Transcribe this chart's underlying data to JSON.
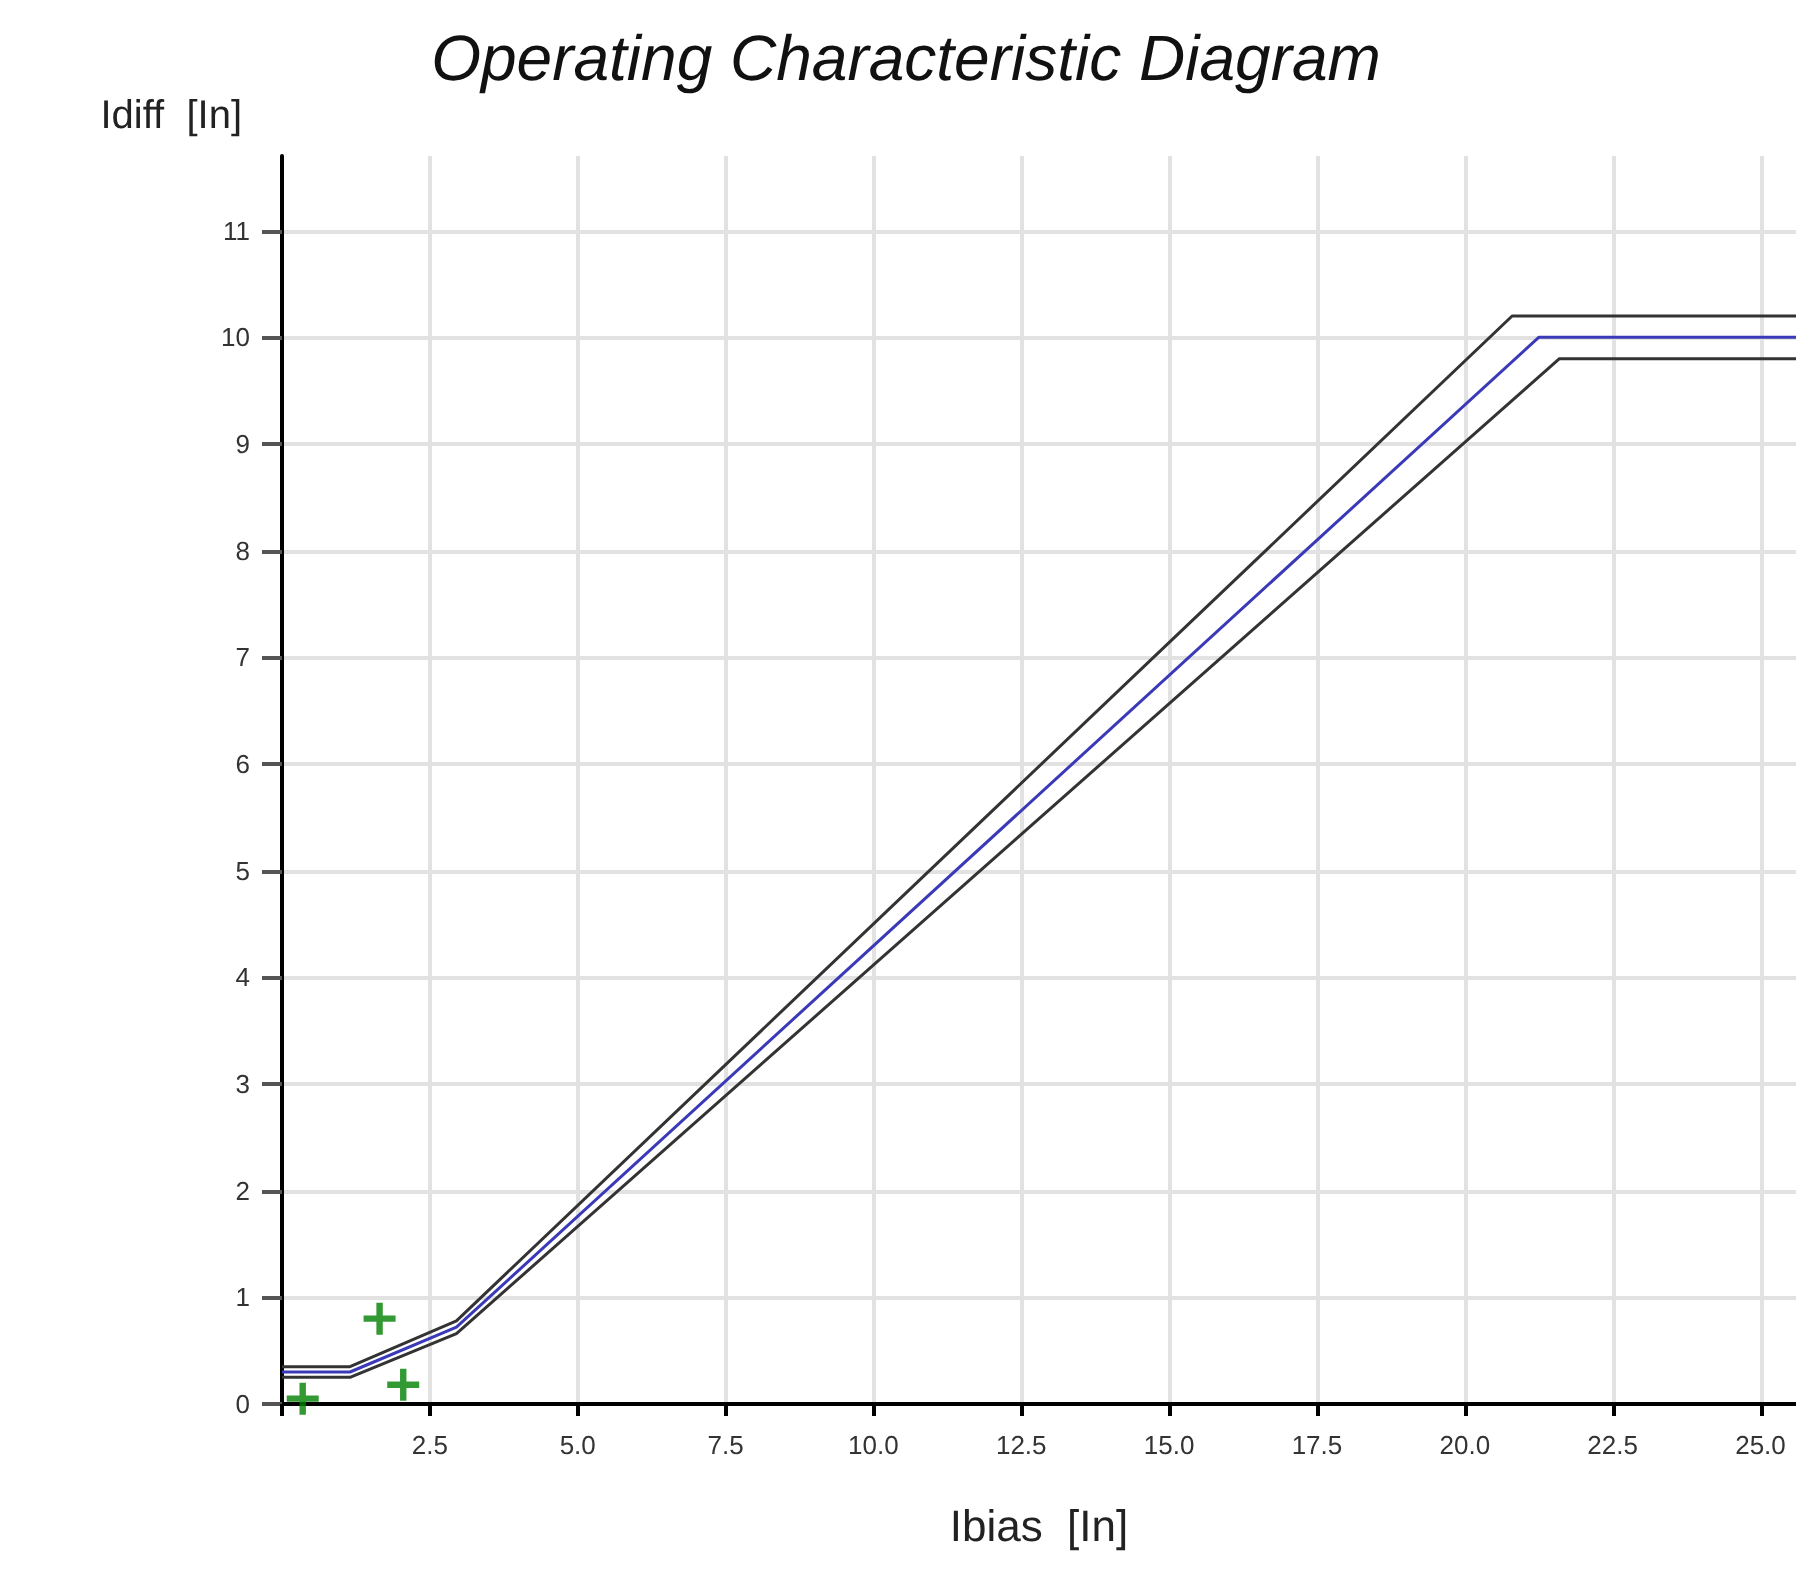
{
  "chart_data": {
    "type": "line",
    "title": "Operating Characteristic Diagram",
    "xlabel": "Ibias  [In]",
    "ylabel": "Idiff  [In]",
    "xlim": [
      0,
      25.6
    ],
    "ylim": [
      0,
      11.7
    ],
    "xticks": [
      {
        "value": 0,
        "label": null
      },
      {
        "value": 2.5,
        "label": "2.5"
      },
      {
        "value": 5,
        "label": "5.0"
      },
      {
        "value": 7.5,
        "label": "7.5"
      },
      {
        "value": 10,
        "label": "10.0"
      },
      {
        "value": 12.5,
        "label": "12.5"
      },
      {
        "value": 15,
        "label": "15.0"
      },
      {
        "value": 17.5,
        "label": "17.5"
      },
      {
        "value": 20,
        "label": "20.0"
      },
      {
        "value": 22.5,
        "label": "22.5"
      },
      {
        "value": 25,
        "label": "25.0"
      }
    ],
    "yticks": [
      0,
      1,
      2,
      3,
      4,
      5,
      6,
      7,
      8,
      9,
      10,
      11
    ],
    "grid": true,
    "marker": "none",
    "line_style": "solid",
    "series": [
      {
        "color": "#333333",
        "x": [
          0,
          1.15,
          2.95,
          20.8,
          25.6
        ],
        "values": [
          0.35,
          0.35,
          0.78,
          10.2,
          10.2
        ]
      },
      {
        "color": "#3a3ab8",
        "x": [
          0,
          1.15,
          2.95,
          21.25,
          25.6
        ],
        "values": [
          0.3,
          0.3,
          0.72,
          10,
          10
        ]
      },
      {
        "color": "#333333",
        "x": [
          0,
          1.15,
          2.95,
          21.6,
          25.6
        ],
        "values": [
          0.25,
          0.25,
          0.66,
          9.8,
          9.8
        ]
      },
      {
        "type": "scatter",
        "marker": "cross",
        "color": "#008000",
        "x": [
          0.35,
          1.65,
          2.05
        ],
        "values": [
          0.05,
          0.8,
          0.18
        ]
      }
    ]
  }
}
